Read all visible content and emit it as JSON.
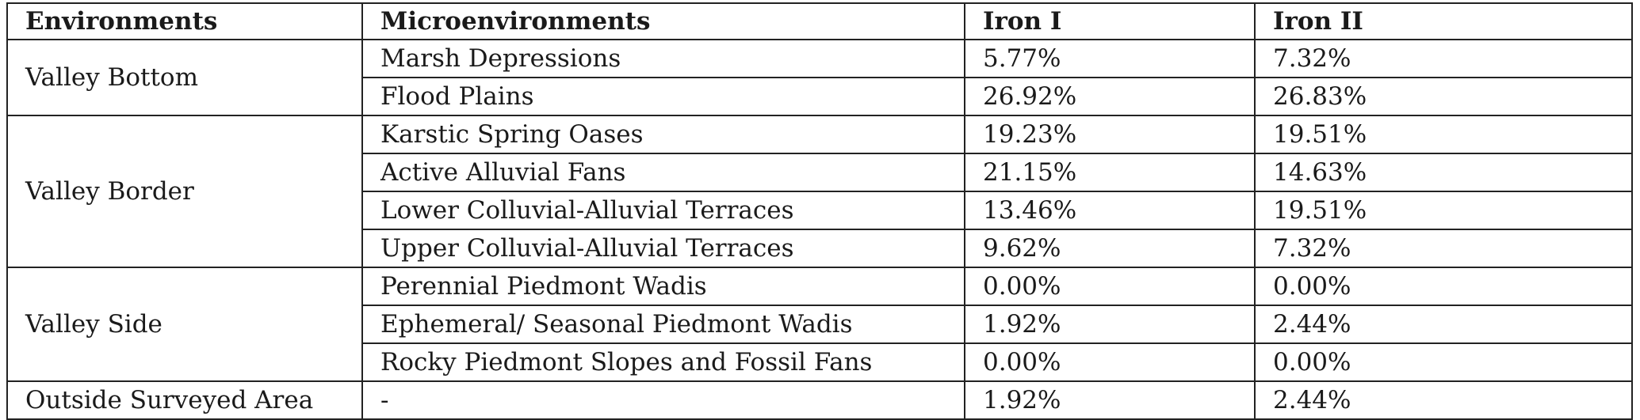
{
  "table": {
    "headers": [
      "Environments",
      "Microenvironments",
      "Iron I",
      "Iron II"
    ],
    "groups": [
      {
        "environment": "Valley Bottom",
        "rows": [
          {
            "micro": "Marsh Depressions",
            "iron1": "5.77%",
            "iron2": "7.32%"
          },
          {
            "micro": "Flood Plains",
            "iron1": "26.92%",
            "iron2": "26.83%"
          }
        ]
      },
      {
        "environment": "Valley Border",
        "rows": [
          {
            "micro": "Karstic Spring Oases",
            "iron1": "19.23%",
            "iron2": "19.51%"
          },
          {
            "micro": "Active Alluvial Fans",
            "iron1": "21.15%",
            "iron2": "14.63%"
          },
          {
            "micro": "Lower Colluvial-Alluvial Terraces",
            "iron1": "13.46%",
            "iron2": "19.51%"
          },
          {
            "micro": "Upper Colluvial-Alluvial Terraces",
            "iron1": "9.62%",
            "iron2": "7.32%"
          }
        ]
      },
      {
        "environment": "Valley Side",
        "rows": [
          {
            "micro": "Perennial Piedmont Wadis",
            "iron1": "0.00%",
            "iron2": "0.00%"
          },
          {
            "micro": "Ephemeral/ Seasonal Piedmont Wadis",
            "iron1": "1.92%",
            "iron2": "2.44%"
          },
          {
            "micro": "Rocky Piedmont Slopes and Fossil Fans",
            "iron1": "0.00%",
            "iron2": "0.00%"
          }
        ]
      },
      {
        "environment": "Outside Surveyed Area",
        "rows": [
          {
            "micro": "-",
            "iron1": "1.92%",
            "iron2": "2.44%"
          }
        ]
      }
    ]
  }
}
